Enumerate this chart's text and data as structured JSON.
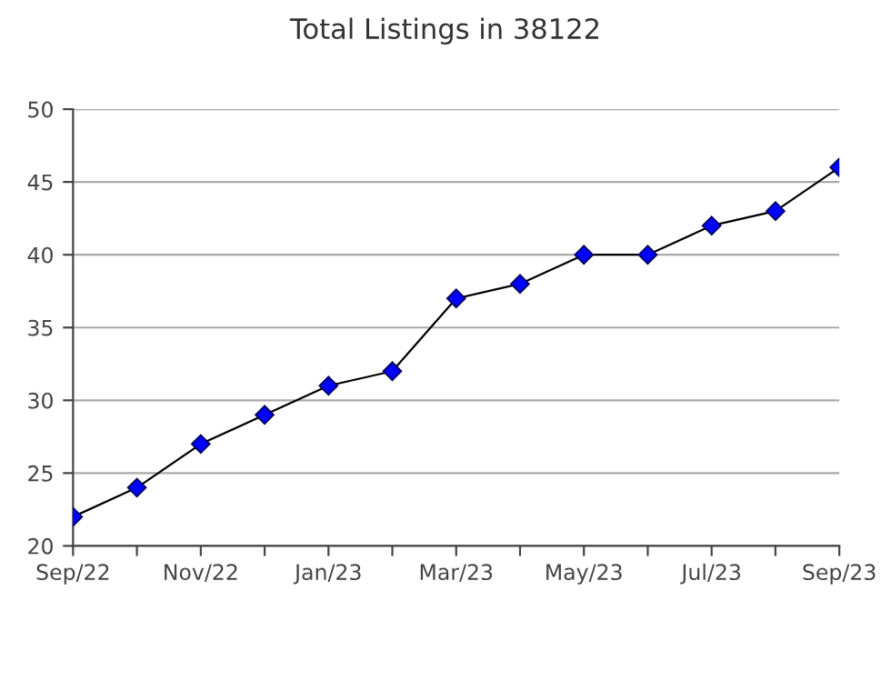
{
  "chart_data": {
    "type": "line",
    "title": "Total Listings in 38122",
    "categories": [
      "Sep/22",
      null,
      "Nov/22",
      null,
      "Jan/23",
      null,
      "Mar/23",
      null,
      "May/23",
      null,
      "Jul/23",
      null,
      "Sep/23"
    ],
    "series": [
      {
        "color": "#0000ff",
        "values": [
          22,
          24,
          27,
          29,
          31,
          32,
          37,
          38,
          40,
          40,
          42,
          43,
          46
        ]
      }
    ],
    "ylim": [
      20,
      50
    ],
    "yticks": [
      20,
      25,
      30,
      35,
      40,
      45,
      50
    ],
    "grid": "y",
    "marker": "diamond",
    "line_style": "solid"
  }
}
